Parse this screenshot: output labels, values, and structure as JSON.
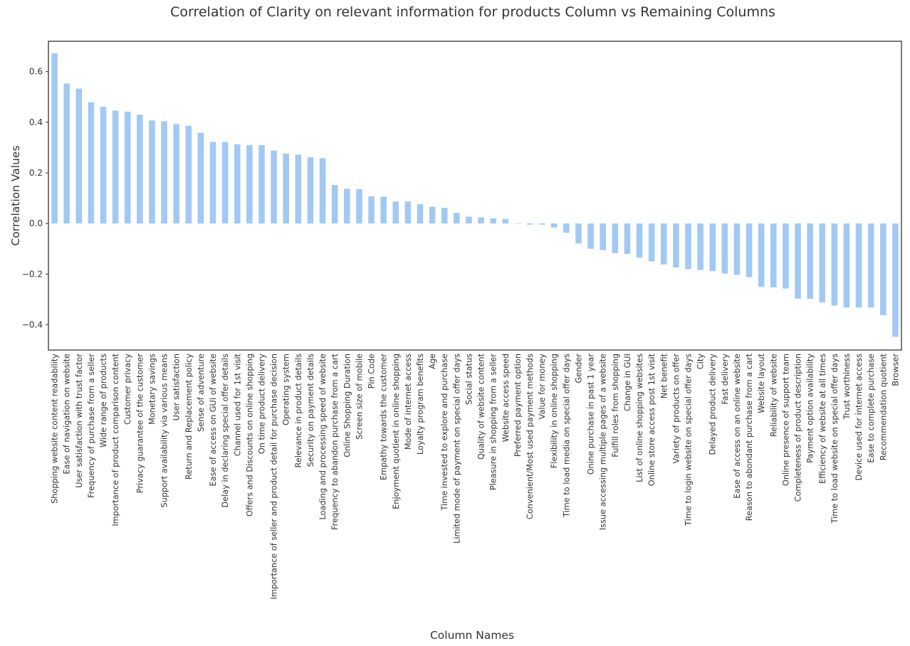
{
  "chart_data": {
    "type": "bar",
    "title": "Correlation of Clarity on relevant information for products Column vs Remaining Columns",
    "xlabel": "Column Names",
    "ylabel": "Correlation Values",
    "ylim": [
      -0.5,
      0.72
    ],
    "yticks": [
      0.6,
      0.4,
      0.2,
      0.0,
      -0.2,
      -0.4
    ],
    "ytick_labels": [
      "0.6",
      "0.4",
      "0.2",
      "0.0",
      "−0.2",
      "−0.4"
    ],
    "grid": false,
    "legend": "none",
    "bar_color": "#a1c9f4",
    "categories": [
      "Shopping website content readability",
      "Ease of navigation on website",
      "User satisfaction with trust factor",
      "Frequency of purchase from a seller",
      "Wide range of products",
      "Importance of product comparison content",
      "Customer privacy",
      "Privacy guarantee of the customer",
      "Monetary savings",
      "Support availability via various means",
      "User satisfaction",
      "Return and Replacement policy",
      "Sense of adventure",
      "Ease of access on GUI of website",
      "Delay in declaring special offer details",
      "Channel used for 1st visit",
      "Offers and Discounts on online shopping",
      "On time product delivery",
      "Importance of seller and product detail for purchase decision",
      "Operating system",
      "Relevance in product details",
      "Security on payment details",
      "Loading and processing speed of website",
      "Frequency to abandon purchase from a cart",
      "Online Shopping Duration",
      "Screen size of mobile",
      "Pin Code",
      "Empathy towards the customer",
      "Enjoyment quotient in online shopping",
      "Mode of internet access",
      "Loyalty program benefits",
      "Age",
      "Time invested to explore and purchase",
      "Limited mode of payment on special offer days",
      "Social status",
      "Quality of website content",
      "Pleasure in shopping from a seller",
      "Website access speed",
      "Preferred payment option",
      "Convenient/Most used payment methods",
      "Value for money",
      "Flexibility in online shopping",
      "Time to load media on special offer days",
      "Gender",
      "Onine purchase in past 1 year",
      "Issue accessing multiple pages of a website",
      "Fulfill roles from shopping",
      "Change in GUI",
      "List of online shopping websites",
      "Online store access post 1st visit",
      "Net benefit",
      "Variety of products on offer",
      "Time to login website on special offer days",
      "City",
      "Delayed product delivery",
      "Fast delivery",
      "Ease of access on an online website",
      "Reason to abondant purchase from a cart",
      "Website layout",
      "Reliability of website",
      "Online presence of support team",
      "Completeness of product description",
      "Payment option availability",
      "Efficiency of website at all times",
      "Time to load website on special offer days",
      "Trust worthiness",
      "Device used for internet access",
      "Ease to complete purchase",
      "Recommendation quotient",
      "Browser"
    ],
    "values": [
      0.673,
      0.553,
      0.533,
      0.479,
      0.461,
      0.446,
      0.442,
      0.43,
      0.407,
      0.404,
      0.393,
      0.386,
      0.359,
      0.322,
      0.322,
      0.313,
      0.31,
      0.31,
      0.288,
      0.276,
      0.272,
      0.262,
      0.258,
      0.152,
      0.137,
      0.136,
      0.107,
      0.106,
      0.087,
      0.087,
      0.076,
      0.066,
      0.062,
      0.042,
      0.027,
      0.024,
      0.02,
      0.018,
      0.0,
      -0.004,
      -0.004,
      -0.016,
      -0.037,
      -0.079,
      -0.1,
      -0.105,
      -0.117,
      -0.12,
      -0.135,
      -0.15,
      -0.162,
      -0.174,
      -0.18,
      -0.184,
      -0.188,
      -0.198,
      -0.203,
      -0.212,
      -0.25,
      -0.252,
      -0.257,
      -0.297,
      -0.298,
      -0.312,
      -0.324,
      -0.332,
      -0.332,
      -0.332,
      -0.362,
      -0.448
    ]
  }
}
